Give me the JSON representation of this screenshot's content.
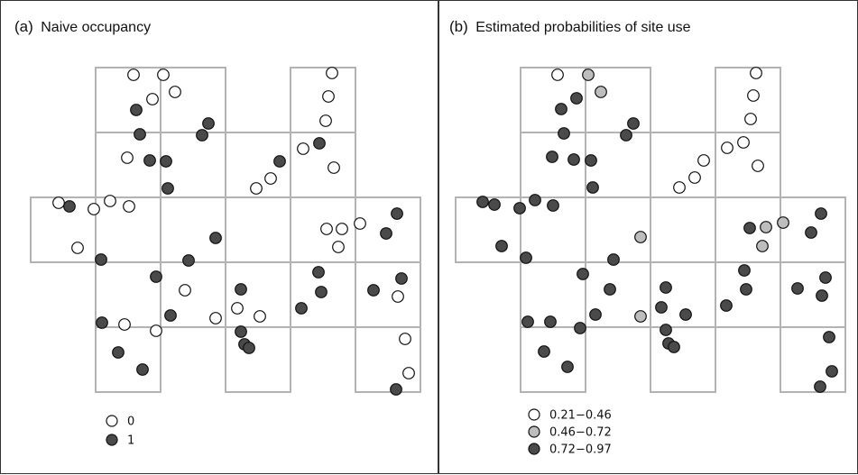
{
  "panels": [
    {
      "tag": "(a)",
      "title": "Naive occupancy",
      "legend": [
        {
          "label": "0",
          "fill": "#ffffff"
        },
        {
          "label": "1",
          "fill": "#4a4a4a"
        }
      ]
    },
    {
      "tag": "(b)",
      "title": "Estimated probabilities of site use",
      "legend": [
        {
          "label": "0.21−0.46",
          "fill": "#ffffff"
        },
        {
          "label": "0.46−0.72",
          "fill": "#bdbdbd"
        },
        {
          "label": "0.72−0.97",
          "fill": "#4a4a4a"
        }
      ]
    }
  ],
  "colors": {
    "grid": "#b3b3b3",
    "occupied": "#4a4a4a",
    "unoccupied": "#ffffff",
    "mid": "#bdbdbd",
    "outline": "#111111"
  }
}
